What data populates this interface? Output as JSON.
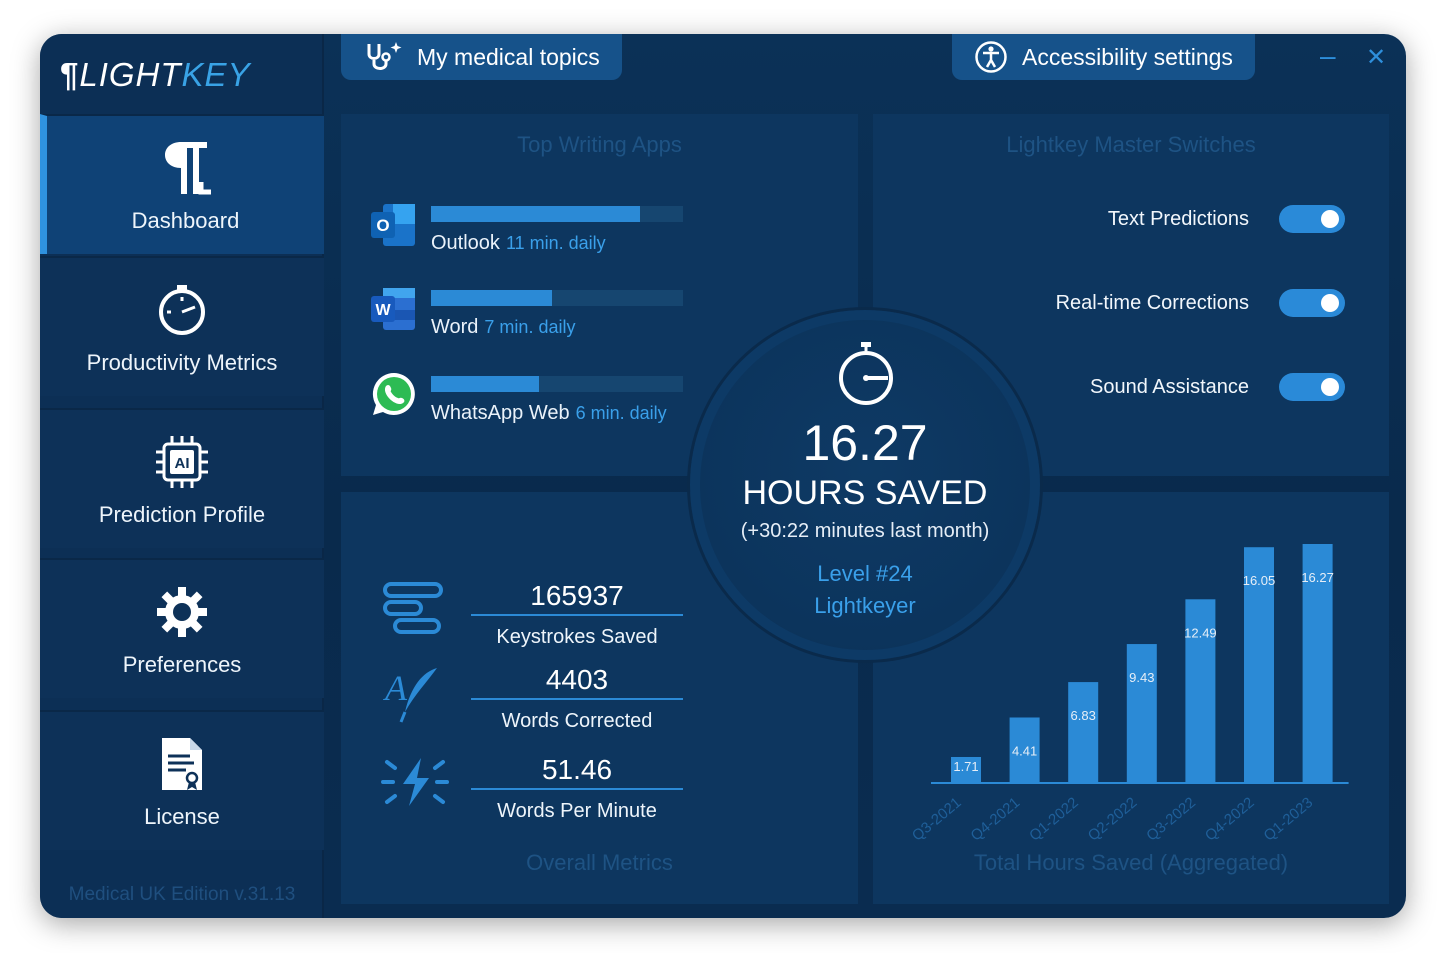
{
  "app": {
    "logo_main": "LIGHT",
    "logo_accent": "KEY",
    "version": "Medical UK Edition v.31.13"
  },
  "tabs": {
    "medical_topics": "My medical topics",
    "accessibility": "Accessibility settings"
  },
  "window_controls": {
    "minimize": "–",
    "close": "✕"
  },
  "sidebar": {
    "items": [
      {
        "label": "Dashboard",
        "icon": "lightkey-logo-icon",
        "active": true
      },
      {
        "label": "Productivity Metrics",
        "icon": "speedometer-icon",
        "active": false
      },
      {
        "label": "Prediction Profile",
        "icon": "ai-chip-icon",
        "active": false
      },
      {
        "label": "Preferences",
        "icon": "gear-icon",
        "active": false
      },
      {
        "label": "License",
        "icon": "certificate-icon",
        "active": false
      }
    ]
  },
  "top_apps": {
    "title": "Top Writing Apps",
    "apps": [
      {
        "name": "Outlook",
        "time": "11 min. daily",
        "icon": "outlook-icon",
        "fraction": 0.83
      },
      {
        "name": "Word",
        "time": "7 min. daily",
        "icon": "word-icon",
        "fraction": 0.48
      },
      {
        "name": "WhatsApp Web",
        "time": "6 min. daily",
        "icon": "whatsapp-icon",
        "fraction": 0.43
      }
    ]
  },
  "switches": {
    "title": "Lightkey Master Switches",
    "items": [
      {
        "label": "Text Predictions",
        "on": true
      },
      {
        "label": "Real-time Corrections",
        "on": true
      },
      {
        "label": "Sound Assistance",
        "on": true
      }
    ]
  },
  "center": {
    "hours": "16.27",
    "caption": "HOURS SAVED",
    "delta": "(+30:22 minutes last month)",
    "level": "Level #24",
    "rank": "Lightkeyer"
  },
  "overall": {
    "title": "Overall Metrics",
    "metrics": [
      {
        "value": "165937",
        "label": "Keystrokes Saved",
        "icon": "keystrokes-icon"
      },
      {
        "value": "4403",
        "label": "Words Corrected",
        "icon": "quill-icon"
      },
      {
        "value": "51.46",
        "label": "Words Per Minute",
        "icon": "speed-bolt-icon"
      }
    ]
  },
  "chart_title": "Total Hours Saved (Aggregated)",
  "chart_data": {
    "type": "bar",
    "categories": [
      "Q3-2021",
      "Q4-2021",
      "Q1-2022",
      "Q2-2022",
      "Q3-2022",
      "Q4-2022",
      "Q1-2023"
    ],
    "values": [
      1.71,
      4.41,
      6.83,
      9.43,
      12.49,
      16.05,
      16.27
    ],
    "labels": [
      "1.71",
      "4.41",
      "6.83",
      "9.43",
      "12.49",
      "16.05",
      "16.27"
    ],
    "title": "Total Hours Saved (Aggregated)",
    "ylim": [
      0,
      16.27
    ],
    "grid": false,
    "bar_color": "#2b8ad6"
  },
  "colors": {
    "accent": "#2b8ad6",
    "accent_text": "#3aa0ea",
    "background": "#0b3157"
  }
}
